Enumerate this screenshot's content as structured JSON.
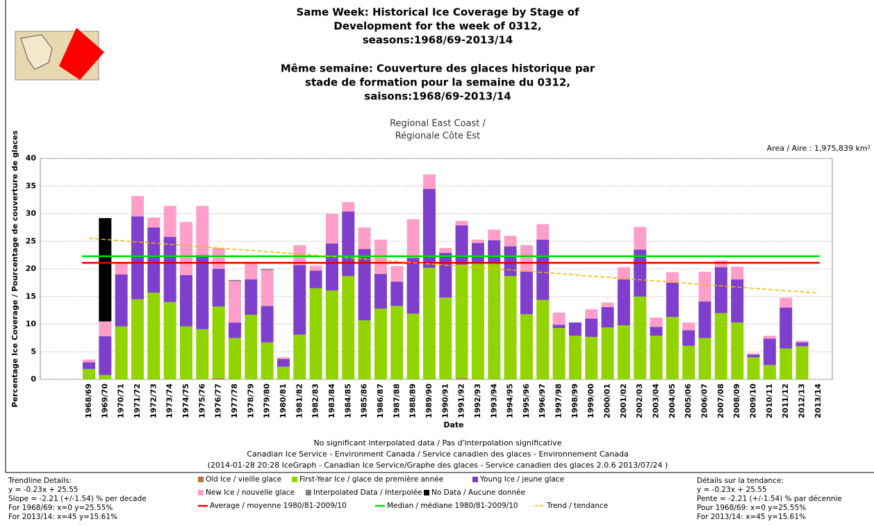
{
  "chart_data": {
    "type": "stacked-bar",
    "title": [
      "Same Week: Historical Ice Coverage by Stage of",
      "Development for the week of 0312,",
      "seasons:1968/69-2013/14",
      "Même semaine: Couverture des glaces historique par",
      "stade de formation pour la semaine du 0312,",
      "saisons:1968/69-2013/14"
    ],
    "subtitle": [
      "Regional East Coast /",
      "Régionale Côte Est"
    ],
    "area": "Area / Aire : 1,975,839 km²",
    "y_label": "Percentage Ice Coverage / Pourcentage de couverture de glaces",
    "x_label": "Date",
    "footer": [
      "No significant interpolated data / Pas d'interpolation significative",
      "Canadian Ice Service - Environment Canada / Service canadien des glaces - Environnement Canada",
      "(2014-01-28 20:28 IceGraph - Canadian Ice Service/Graphe des glaces - Service canadien des glaces 2.0.6 2013/07/24 )"
    ],
    "trend_details_en": [
      "Trendline Details:",
      "y = -0.23x + 25.55",
      "Slope = -2.21 (+/-1.54) % per decade",
      "For 1968/69: x=0  y=25.55%",
      "For 2013/14: x=45  y=15.61%"
    ],
    "trend_details_fr": [
      "Détails sur la tendance:",
      "y = -0.23x + 25.55",
      "Pente = -2.21 (+/-1.54) % par décennie",
      "Pour 1968/69: x=0  y=25.55%",
      "For 2013/14: x=45  y=15.61%"
    ],
    "categories": [
      "1968/69",
      "1969/70",
      "1970/71",
      "1971/72",
      "1972/73",
      "1973/74",
      "1974/75",
      "1975/76",
      "1976/77",
      "1977/78",
      "1978/79",
      "1979/80",
      "1980/81",
      "1981/82",
      "1982/83",
      "1983/84",
      "1984/85",
      "1985/86",
      "1986/87",
      "1987/88",
      "1988/89",
      "1989/90",
      "1990/91",
      "1991/92",
      "1992/93",
      "1993/94",
      "1994/95",
      "1995/96",
      "1996/97",
      "1997/98",
      "1998/99",
      "1999/00",
      "2000/01",
      "2001/02",
      "2002/03",
      "2003/04",
      "2004/05",
      "2005/06",
      "2006/07",
      "2007/08",
      "2008/09",
      "2009/10",
      "2010/11",
      "2011/12",
      "2012/13",
      "2013/14"
    ],
    "series": [
      {
        "name": "Old Ice / vieille glace",
        "color": "#b8743c",
        "values": [
          0,
          0,
          0,
          0,
          0,
          0,
          0,
          0,
          0.2,
          0,
          0,
          0,
          0,
          0,
          0,
          0,
          0,
          0,
          0,
          0,
          0,
          0,
          0,
          0.2,
          0,
          0,
          0,
          0,
          0,
          0,
          0,
          0,
          0,
          0,
          0,
          0,
          0,
          0,
          0,
          0,
          0,
          0,
          0,
          0,
          0,
          null
        ]
      },
      {
        "name": "First-Year Ice / glace de première année",
        "color": "#92d400",
        "values": [
          1.9,
          0.8,
          9.6,
          14.5,
          15.7,
          14.0,
          9.6,
          9.1,
          13.0,
          7.5,
          11.7,
          6.7,
          2.3,
          8.1,
          16.5,
          16.1,
          18.7,
          10.7,
          12.8,
          13.3,
          11.9,
          20.2,
          14.8,
          20.6,
          21.0,
          21.0,
          18.7,
          11.8,
          14.4,
          9.3,
          7.9,
          7.7,
          9.4,
          9.8,
          15.0,
          7.9,
          11.3,
          6.1,
          7.5,
          12.0,
          10.3,
          4.0,
          2.6,
          5.6,
          6.0,
          null
        ]
      },
      {
        "name": "Young Ice / jeune glace",
        "color": "#7e3fcc",
        "values": [
          1.2,
          7.0,
          9.4,
          15.0,
          11.8,
          11.8,
          9.3,
          13.4,
          6.8,
          2.8,
          6.4,
          6.6,
          1.4,
          12.6,
          3.2,
          8.5,
          11.7,
          12.9,
          6.3,
          4.4,
          10.1,
          14.3,
          8.1,
          7.1,
          3.7,
          4.2,
          5.4,
          7.7,
          10.9,
          0.6,
          2.4,
          3.3,
          3.7,
          8.3,
          8.5,
          1.6,
          6.2,
          2.8,
          6.6,
          8.3,
          7.8,
          0.5,
          4.8,
          7.4,
          0.7,
          null
        ]
      },
      {
        "name": "New Ice / nouvelle glace",
        "color": "#ff9fc9",
        "values": [
          0.5,
          2.7,
          2.0,
          3.7,
          1.8,
          5.6,
          9.6,
          8.9,
          3.8,
          7.5,
          3.2,
          6.5,
          0.3,
          3.6,
          0.9,
          5.4,
          1.7,
          3.9,
          6.2,
          2.8,
          7.0,
          2.6,
          0.9,
          0.8,
          0.6,
          1.9,
          1.9,
          4.8,
          2.8,
          2.2,
          0,
          1.7,
          0.8,
          2.2,
          4.1,
          1.7,
          1.9,
          1.4,
          5.4,
          1.2,
          2.3,
          0.2,
          0.5,
          1.8,
          0.3,
          null
        ]
      },
      {
        "name": "Interpolated Data / Interpolée",
        "color": "#808080",
        "values": [
          0,
          0,
          0,
          0,
          0,
          0,
          0,
          0,
          0,
          0.2,
          0,
          0.2,
          0,
          0,
          0,
          0,
          0,
          0,
          0,
          0,
          0,
          0,
          0,
          0,
          0,
          0,
          0,
          0,
          0,
          0,
          0,
          0,
          0,
          0,
          0,
          0,
          0,
          0,
          0,
          0,
          0,
          0,
          0,
          0,
          0,
          null
        ]
      },
      {
        "name": "No Data / Aucune donnée",
        "color": "#000000",
        "values": [
          0,
          18.7,
          0,
          0,
          0,
          0,
          0,
          0,
          0,
          0,
          0,
          0,
          0,
          0,
          0,
          0,
          0,
          0,
          0,
          0,
          0,
          0,
          0,
          0,
          0,
          0,
          0,
          0,
          0,
          0,
          0,
          0,
          0,
          0,
          0,
          0,
          0,
          0,
          0,
          0,
          0,
          0,
          0,
          0,
          0,
          null
        ]
      }
    ],
    "reference_lines": [
      {
        "name": "Average / moyenne 1980/81-2009/10",
        "color": "#e00000",
        "value": 21.1
      },
      {
        "name": "Median / médiane 1980/81-2009/10",
        "color": "#00dd00",
        "value": 22.3
      }
    ],
    "trend": {
      "name": "Trend / tendance",
      "color": "#f5b400",
      "values": [
        25.55,
        25.33,
        25.11,
        24.89,
        24.67,
        24.45,
        24.22,
        24.0,
        23.78,
        23.56,
        23.34,
        23.12,
        22.9,
        22.68,
        22.46,
        22.24,
        22.02,
        21.79,
        21.57,
        21.35,
        21.13,
        20.91,
        20.69,
        20.47,
        20.25,
        20.03,
        19.81,
        19.59,
        19.36,
        19.14,
        18.92,
        18.7,
        18.48,
        18.26,
        18.04,
        17.82,
        17.6,
        17.38,
        17.16,
        16.94,
        16.71,
        16.49,
        16.27,
        16.05,
        15.83,
        15.61
      ]
    },
    "ylim": [
      0,
      40
    ],
    "yticks": [
      0,
      5,
      10,
      15,
      20,
      25,
      30,
      35,
      40
    ],
    "grid": true
  }
}
